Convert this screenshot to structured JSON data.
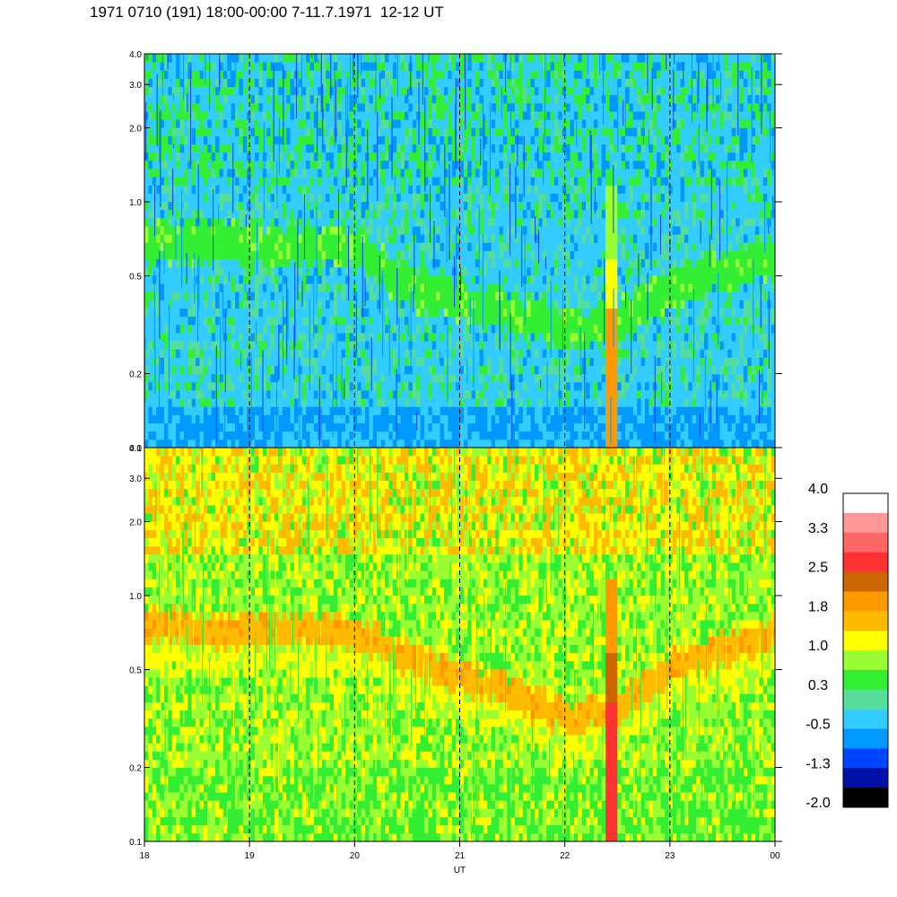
{
  "title": "1971 0710 (191) 18:00-00:00 7-11.7.1971  12-12 UT",
  "chart_data": {
    "type": "heatmap",
    "title": "1971 0710 (191) 18:00-00:00 7-11.7.1971  12-12 UT",
    "xlabel": "UT",
    "x_tick_labels": [
      "18",
      "19",
      "20",
      "21",
      "22",
      "23",
      "00"
    ],
    "x_range_hours_ut": [
      18,
      24
    ],
    "y_scale": "log",
    "y_tick_labels": [
      "0.1",
      "0.2",
      "0.5",
      "1.0",
      "2.0",
      "3.0",
      "4.0"
    ],
    "y_range": [
      0.1,
      4.0
    ],
    "vertical_dashed_lines_at_hours": [
      19,
      20,
      21,
      22,
      23
    ],
    "panels": [
      {
        "name": "top-panel",
        "dominant_colors": [
          "#33ccff",
          "#33ee33",
          "#0099ff",
          "#0044ff"
        ],
        "band_center_value_by_hour": [
          [
            18,
            0.7
          ],
          [
            20,
            0.65
          ],
          [
            20.5,
            0.45
          ],
          [
            21.5,
            0.35
          ],
          [
            22,
            0.3
          ],
          [
            22.5,
            0.32
          ],
          [
            23,
            0.45
          ],
          [
            24,
            0.6
          ]
        ],
        "burst_hour": 22.45
      },
      {
        "name": "bottom-panel",
        "dominant_colors": [
          "#99ff33",
          "#ffff00",
          "#33ee33",
          "#ffbb00"
        ],
        "band_center_value_by_hour": [
          [
            18,
            0.75
          ],
          [
            20,
            0.72
          ],
          [
            20.5,
            0.55
          ],
          [
            21.5,
            0.4
          ],
          [
            22,
            0.32
          ],
          [
            22.5,
            0.35
          ],
          [
            23,
            0.5
          ],
          [
            24,
            0.72
          ]
        ],
        "burst_hour": 22.45
      }
    ],
    "colorbar": {
      "labels": [
        "4.0",
        "3.3",
        "2.5",
        "1.8",
        "1.0",
        "0.3",
        "-0.5",
        "-1.3",
        "-2.0"
      ],
      "colors": [
        "#ffffff",
        "#ff9999",
        "#ff6666",
        "#ff3333",
        "#cc6600",
        "#ff9900",
        "#ffbb00",
        "#ffff00",
        "#99ff33",
        "#33ee33",
        "#55dd99",
        "#33ccff",
        "#0099ff",
        "#0044ff",
        "#0011aa",
        "#000000"
      ]
    }
  }
}
